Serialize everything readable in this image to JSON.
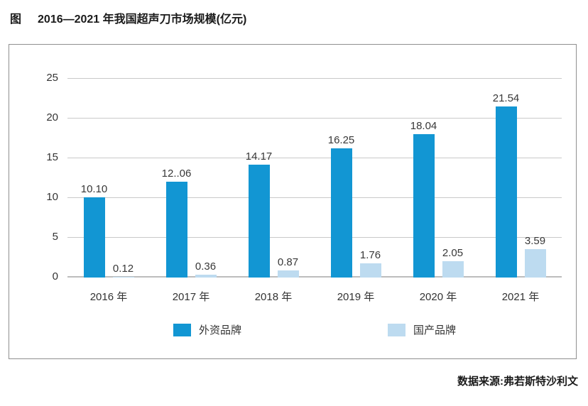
{
  "title": {
    "prefix": "图",
    "text": "2016—2021 年我国超声刀市场规模(亿元)"
  },
  "source": "数据来源:弗若斯特沙利文",
  "colors": {
    "foreign_brand": "#1296d3",
    "domestic_brand": "#bddbf0",
    "gridline": "#c9c9c9",
    "border": "#8f8f8f"
  },
  "chart_data": {
    "type": "bar",
    "title": "2016—2021 年我国超声刀市场规模(亿元)",
    "categories": [
      "2016 年",
      "2017 年",
      "2018 年",
      "2019 年",
      "2020 年",
      "2021 年"
    ],
    "series": [
      {
        "name": "外资品牌",
        "color": "#1296d3",
        "values": [
          10.1,
          12.06,
          14.17,
          16.25,
          18.04,
          21.54
        ],
        "labels": [
          "10.10",
          "12..06",
          "14.17",
          "16.25",
          "18.04",
          "21.54"
        ]
      },
      {
        "name": "国产品牌",
        "color": "#bddbf0",
        "values": [
          0.12,
          0.36,
          0.87,
          1.76,
          2.05,
          3.59
        ],
        "labels": [
          "0.12",
          "0.36",
          "0.87",
          "1.76",
          "2.05",
          "3.59"
        ]
      }
    ],
    "xlabel": "",
    "ylabel": "",
    "ylim": [
      0,
      25
    ],
    "ytick_step": 5,
    "grid": true,
    "legend_position": "bottom-inside"
  }
}
